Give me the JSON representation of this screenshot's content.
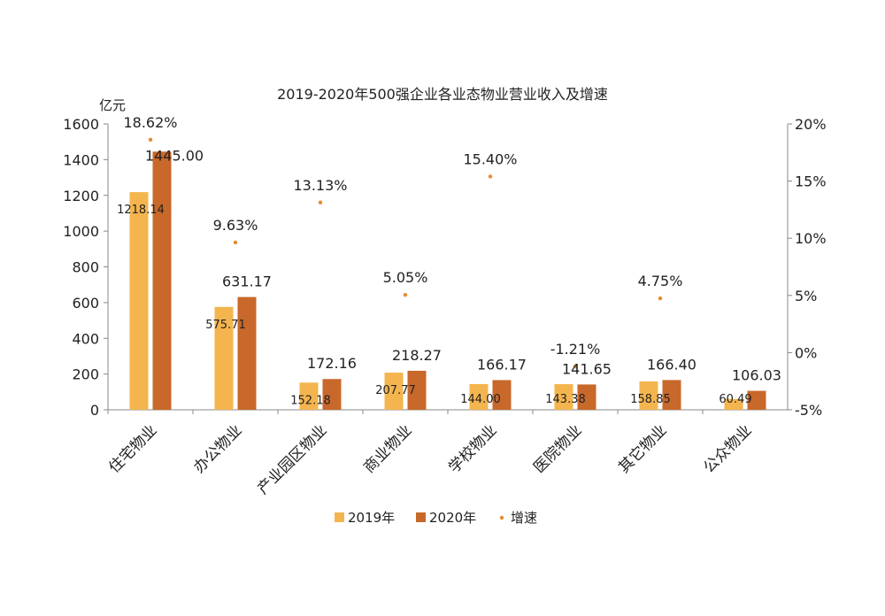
{
  "chart_data": {
    "type": "bar",
    "title": "2019-2020年500强企业各业态物业营业收入及增速",
    "ylabel": "亿元",
    "ylim": [
      0,
      1600
    ],
    "yticks": [
      0,
      200,
      400,
      600,
      800,
      1000,
      1200,
      1400,
      1600
    ],
    "y2lim": [
      -5,
      20
    ],
    "y2ticks": [
      "-5%",
      "0%",
      "5%",
      "10%",
      "15%",
      "20%"
    ],
    "y2tick_values": [
      -5,
      0,
      5,
      10,
      15,
      20
    ],
    "categories": [
      "住宅物业",
      "办公物业",
      "产业园区物业",
      "商业物业",
      "学校物业",
      "医院物业",
      "其它物业",
      "公众物业"
    ],
    "series": [
      {
        "name": "2019年",
        "type": "bar",
        "axis": "left",
        "color": "#F4B54E",
        "values": [
          1218.14,
          575.71,
          152.18,
          207.77,
          144.0,
          143.38,
          158.85,
          60.49
        ],
        "labels": [
          "1218.14",
          "575.71",
          "152.18",
          "207.77",
          "144.00",
          "143.38",
          "158.85",
          "60.49"
        ]
      },
      {
        "name": "2020年",
        "type": "bar",
        "axis": "right",
        "color": "#C8682A",
        "values": [
          1445.0,
          631.17,
          172.16,
          218.27,
          166.17,
          141.65,
          166.4,
          106.03
        ],
        "labels": [
          "1445.00",
          "631.17",
          "172.16",
          "218.27",
          "166.17",
          "141.65",
          "166.40",
          "106.03"
        ]
      },
      {
        "name": "增速",
        "type": "scatter",
        "axis": "right",
        "color": "#E88A2E",
        "values": [
          18.62,
          9.63,
          13.13,
          5.05,
          15.4,
          -1.21,
          4.75,
          null
        ],
        "labels": [
          "18.62%",
          "9.63%",
          "13.13%",
          "5.05%",
          "15.40%",
          "-1.21%",
          "4.75%",
          ""
        ]
      }
    ],
    "legend": {
      "placement": "bottom"
    },
    "grid": false
  }
}
